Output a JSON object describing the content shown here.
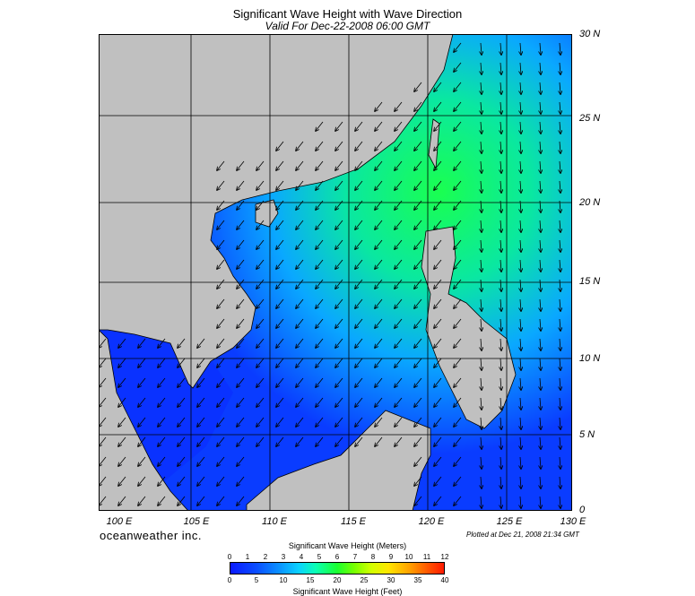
{
  "header": {
    "title": "Significant Wave Height with Wave Direction",
    "subtitle": "Valid For Dec-22-2008 06:00 GMT"
  },
  "axes": {
    "latitudes": [
      "30 N",
      "25 N",
      "20 N",
      "15 N",
      "10 N",
      "5 N",
      "0"
    ],
    "longitudes": [
      "100 E",
      "105 E",
      "110 E",
      "115 E",
      "120 E",
      "125 E",
      "130 E"
    ]
  },
  "footer": {
    "brand": "oceanweather inc.",
    "plotted": "Plotted at Dec 21, 2008 21:34 GMT"
  },
  "colorbar": {
    "meters_title": "Significant Wave Height (Meters)",
    "feet_title": "Significant Wave Height (Feet)",
    "meters_ticks": [
      "0",
      "1",
      "2",
      "3",
      "4",
      "5",
      "6",
      "7",
      "8",
      "9",
      "10",
      "11",
      "12"
    ],
    "feet_ticks": [
      "0",
      "5",
      "10",
      "15",
      "20",
      "25",
      "30",
      "35",
      "40"
    ]
  },
  "colors": {
    "land": "#c0c0c0",
    "sea_low": "#0a3cff",
    "sea_mid": "#0ab4ff",
    "sea_high": "#1aff50"
  }
}
